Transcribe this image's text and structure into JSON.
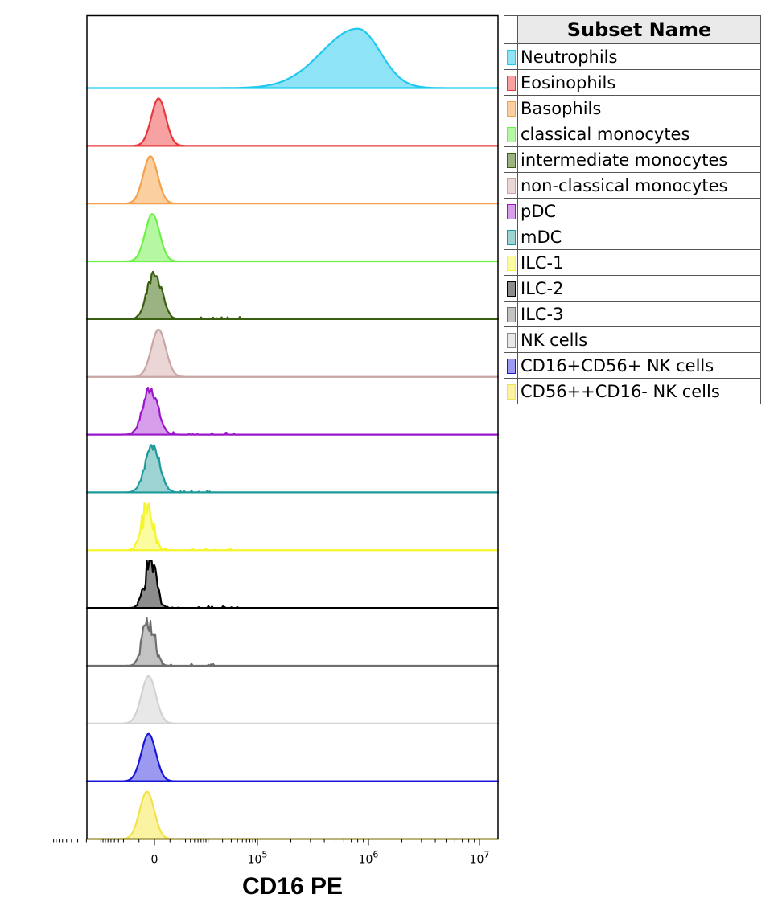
{
  "chart_data": {
    "type": "histogram-overlay-stacked",
    "xlabel": "CD16 PE",
    "x_scale": "biexponential",
    "x_ticks": [
      {
        "value": 0,
        "base": "0",
        "exp": ""
      },
      {
        "value": 100000,
        "base": "10",
        "exp": "5"
      },
      {
        "value": 1000000,
        "base": "10",
        "exp": "6"
      },
      {
        "value": 10000000,
        "base": "10",
        "exp": "7"
      }
    ],
    "legend_header": "Subset Name",
    "legend_placement": "right",
    "series": [
      {
        "name": "Neutrophils",
        "color": "#1ec8ee",
        "fill": "#8ee3f7",
        "peak": 800000,
        "shape": "smooth",
        "seed": 1
      },
      {
        "name": "Eosinophils",
        "color": "#e8383c",
        "fill": "#f7a1a2",
        "peak": 200,
        "shape": "smooth",
        "seed": 2
      },
      {
        "name": "Basophils",
        "color": "#f5a04c",
        "fill": "#fbcf9f",
        "peak": -200,
        "shape": "smooth",
        "seed": 3
      },
      {
        "name": "classical monocytes",
        "color": "#6ef04a",
        "fill": "#b6f7a2",
        "peak": -100,
        "shape": "smooth",
        "seed": 4
      },
      {
        "name": "intermediate monocytes",
        "color": "#3a5f10",
        "fill": "#9bb383",
        "peak": 0,
        "shape": "noisy",
        "seed": 5
      },
      {
        "name": "non-classical monocytes",
        "color": "#c9a6a4",
        "fill": "#ead6d5",
        "peak": 200,
        "shape": "smooth",
        "seed": 6
      },
      {
        "name": "pDC",
        "color": "#9b16c9",
        "fill": "#d79eec",
        "peak": -200,
        "shape": "noisy",
        "seed": 7
      },
      {
        "name": "mDC",
        "color": "#1c9a9a",
        "fill": "#9dd3d3",
        "peak": -100,
        "shape": "noisy",
        "seed": 8
      },
      {
        "name": "ILC-1",
        "color": "#f5f52e",
        "fill": "#fbfb9f",
        "peak": -400,
        "shape": "jagged",
        "seed": 9
      },
      {
        "name": "ILC-2",
        "color": "#000000",
        "fill": "#8c8c8c",
        "peak": -200,
        "shape": "jagged",
        "seed": 10
      },
      {
        "name": "ILC-3",
        "color": "#6e6e6e",
        "fill": "#c3c3c3",
        "peak": -300,
        "shape": "jagged",
        "seed": 11
      },
      {
        "name": "NK cells",
        "color": "#d2d2d2",
        "fill": "#e8e8e8",
        "peak": -300,
        "shape": "smooth",
        "seed": 12
      },
      {
        "name": "CD16+CD56+ NK cells",
        "color": "#1a16d8",
        "fill": "#9b99f0",
        "peak": -300,
        "shape": "smooth",
        "seed": 13
      },
      {
        "name": "CD56++CD16- NK cells",
        "color": "#f2e24a",
        "fill": "#faf3a2",
        "peak": -400,
        "shape": "smooth",
        "seed": 14
      }
    ]
  }
}
